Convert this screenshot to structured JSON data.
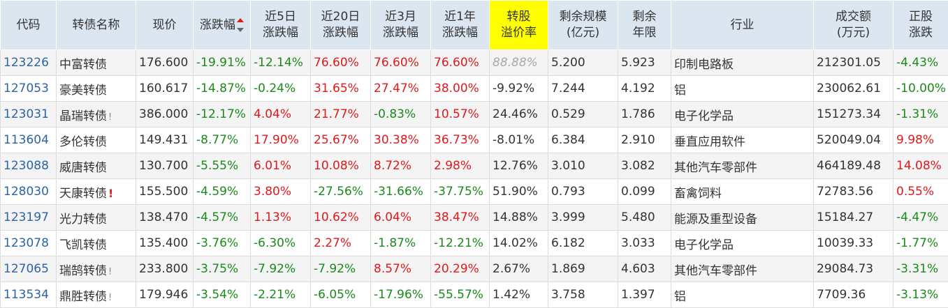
{
  "headers": [
    {
      "key": "code",
      "lines": [
        "代码"
      ]
    },
    {
      "key": "name",
      "lines": [
        "转债名称"
      ]
    },
    {
      "key": "price",
      "lines": [
        "现价"
      ]
    },
    {
      "key": "change",
      "lines": [
        "涨跌幅"
      ]
    },
    {
      "key": "chg5d",
      "lines": [
        "近5日",
        "涨跌幅"
      ]
    },
    {
      "key": "chg20d",
      "lines": [
        "近20日",
        "涨跌幅"
      ]
    },
    {
      "key": "chg3m",
      "lines": [
        "近3月",
        "涨跌幅"
      ]
    },
    {
      "key": "chg1y",
      "lines": [
        "近1年",
        "涨跌幅"
      ]
    },
    {
      "key": "premium",
      "lines": [
        "转股",
        "溢价率"
      ]
    },
    {
      "key": "remaining_size",
      "lines": [
        "剩余规模",
        "(亿元)"
      ]
    },
    {
      "key": "remaining_years",
      "lines": [
        "剩余",
        "年限"
      ]
    },
    {
      "key": "industry",
      "lines": [
        "行业"
      ]
    },
    {
      "key": "turnover",
      "lines": [
        "成交额",
        "(万元)"
      ]
    },
    {
      "key": "stock_change",
      "lines": [
        "正股",
        "涨跌"
      ]
    }
  ],
  "rows": [
    {
      "code": "123226",
      "name": "中富转债",
      "mark": "",
      "price": "176.600",
      "change": "-19.91%",
      "chg5d": "-12.14%",
      "chg20d": "76.60%",
      "chg3m": "76.60%",
      "chg1y": "76.60%",
      "premium": "88.88%",
      "remaining_size": "5.200",
      "remaining_years": "5.923",
      "industry": "印制电路板",
      "turnover": "212301.05",
      "stock_change": "-4.43%"
    },
    {
      "code": "127053",
      "name": "豪美转债",
      "mark": "",
      "price": "160.617",
      "change": "-14.87%",
      "chg5d": "-0.24%",
      "chg20d": "31.65%",
      "chg3m": "27.47%",
      "chg1y": "38.00%",
      "premium": "-9.92%",
      "remaining_size": "7.244",
      "remaining_years": "4.192",
      "industry": "铝",
      "turnover": "230062.61",
      "stock_change": "-10.00%"
    },
    {
      "code": "123031",
      "name": "晶瑞转债",
      "mark": "!",
      "price": "386.000",
      "change": "-12.17%",
      "chg5d": "4.04%",
      "chg20d": "21.77%",
      "chg3m": "-0.83%",
      "chg1y": "10.57%",
      "premium": "24.46%",
      "remaining_size": "0.529",
      "remaining_years": "1.786",
      "industry": "电子化学品",
      "turnover": "151273.34",
      "stock_change": "-1.31%"
    },
    {
      "code": "113604",
      "name": "多伦转债",
      "mark": "",
      "price": "149.431",
      "change": "-8.77%",
      "chg5d": "17.90%",
      "chg20d": "25.67%",
      "chg3m": "30.38%",
      "chg1y": "36.73%",
      "premium": "-8.01%",
      "remaining_size": "6.384",
      "remaining_years": "2.910",
      "industry": "垂直应用软件",
      "turnover": "520049.04",
      "stock_change": "9.98%"
    },
    {
      "code": "123088",
      "name": "威唐转债",
      "mark": "",
      "price": "130.700",
      "change": "-5.55%",
      "chg5d": "6.01%",
      "chg20d": "10.08%",
      "chg3m": "8.72%",
      "chg1y": "2.98%",
      "premium": "12.76%",
      "remaining_size": "3.010",
      "remaining_years": "3.082",
      "industry": "其他汽车零部件",
      "turnover": "464189.48",
      "stock_change": "14.08%"
    },
    {
      "code": "128030",
      "name": "天康转债",
      "mark": "!",
      "price": "155.500",
      "change": "-4.59%",
      "chg5d": "3.80%",
      "chg20d": "-27.56%",
      "chg3m": "-31.66%",
      "chg1y": "-37.75%",
      "premium": "51.90%",
      "remaining_size": "0.793",
      "remaining_years": "0.099",
      "industry": "畜禽饲料",
      "turnover": "72783.56",
      "stock_change": "0.55%"
    },
    {
      "code": "123197",
      "name": "光力转债",
      "mark": "",
      "price": "138.470",
      "change": "-4.57%",
      "chg5d": "1.13%",
      "chg20d": "10.62%",
      "chg3m": "6.04%",
      "chg1y": "38.47%",
      "premium": "14.88%",
      "remaining_size": "3.999",
      "remaining_years": "5.480",
      "industry": "能源及重型设备",
      "turnover": "15184.27",
      "stock_change": "-4.47%"
    },
    {
      "code": "123078",
      "name": "飞凯转债",
      "mark": "",
      "price": "135.400",
      "change": "-3.76%",
      "chg5d": "-6.30%",
      "chg20d": "2.27%",
      "chg3m": "-1.87%",
      "chg1y": "-12.21%",
      "premium": "14.02%",
      "remaining_size": "6.182",
      "remaining_years": "3.033",
      "industry": "电子化学品",
      "turnover": "10039.33",
      "stock_change": "-1.77%"
    },
    {
      "code": "127065",
      "name": "瑞鹄转债",
      "mark": "!",
      "price": "233.800",
      "change": "-3.75%",
      "chg5d": "-7.92%",
      "chg20d": "-7.92%",
      "chg3m": "8.57%",
      "chg1y": "20.29%",
      "premium": "2.67%",
      "remaining_size": "1.869",
      "remaining_years": "4.603",
      "industry": "其他汽车零部件",
      "turnover": "29084.73",
      "stock_change": "-3.31%"
    },
    {
      "code": "113534",
      "name": "鼎胜转债",
      "mark": "!",
      "price": "179.946",
      "change": "-3.54%",
      "chg5d": "-2.21%",
      "chg20d": "-6.05%",
      "chg3m": "-17.96%",
      "chg1y": "-55.57%",
      "premium": "1.42%",
      "remaining_size": "3.758",
      "remaining_years": "1.397",
      "industry": "铝",
      "turnover": "7709.36",
      "stock_change": "-3.13%"
    }
  ],
  "colors": {
    "up": "#e0191c",
    "down": "#1a8a1a",
    "header_bg": "#dce6f1",
    "highlight": "#ffff00",
    "code": "#2a64a7"
  }
}
